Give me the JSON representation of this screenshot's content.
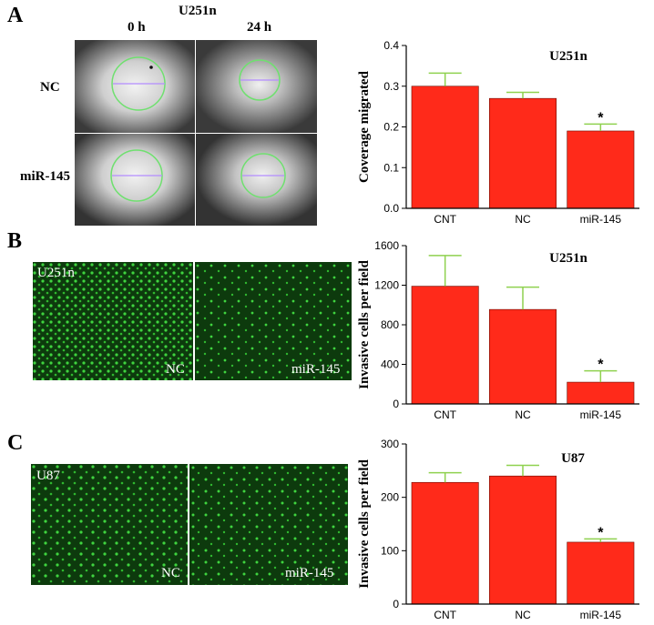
{
  "panels": {
    "a": {
      "letter": "A",
      "cell_line": "U251n",
      "time_labels": [
        "0 h",
        "24 h"
      ],
      "row_labels": [
        "NC",
        "miR-145"
      ]
    },
    "b": {
      "letter": "B",
      "cell_line": "U251n",
      "image_labels": [
        "NC",
        "miR-145"
      ]
    },
    "c": {
      "letter": "C",
      "cell_line": "U87",
      "image_labels": [
        "NC",
        "miR-145"
      ]
    }
  },
  "colors": {
    "bar": "#ff2a1a",
    "error": "#8fd14f",
    "gfp": "#0d3a0d"
  },
  "chart_data": [
    {
      "type": "bar",
      "title": "U251n",
      "xlabel": "",
      "ylabel": "Coverage migrated",
      "categories": [
        "CNT",
        "NC",
        "miR-145"
      ],
      "values": [
        0.3,
        0.27,
        0.19
      ],
      "errors": [
        0.032,
        0.015,
        0.017
      ],
      "ylim": [
        0,
        0.4
      ],
      "yticks": [
        "0.0",
        "0.1",
        "0.2",
        "0.3",
        "0.4"
      ],
      "annotations": [
        "",
        "",
        "*"
      ],
      "grid": false
    },
    {
      "type": "bar",
      "title": "U251n",
      "xlabel": "",
      "ylabel": "Invasive cells per field",
      "categories": [
        "CNT",
        "NC",
        "miR-145"
      ],
      "values": [
        1190,
        955,
        220
      ],
      "errors": [
        310,
        225,
        115
      ],
      "ylim": [
        0,
        1600
      ],
      "yticks": [
        "0",
        "400",
        "800",
        "1200",
        "1600"
      ],
      "annotations": [
        "",
        "",
        "*"
      ],
      "grid": false
    },
    {
      "type": "bar",
      "title": "U87",
      "xlabel": "",
      "ylabel": "Invasive cells per field",
      "categories": [
        "CNT",
        "NC",
        "miR-145"
      ],
      "values": [
        228,
        240,
        116
      ],
      "errors": [
        18,
        20,
        6
      ],
      "ylim": [
        0,
        300
      ],
      "yticks": [
        "0",
        "100",
        "200",
        "300"
      ],
      "annotations": [
        "",
        "",
        "*"
      ],
      "grid": false
    }
  ]
}
